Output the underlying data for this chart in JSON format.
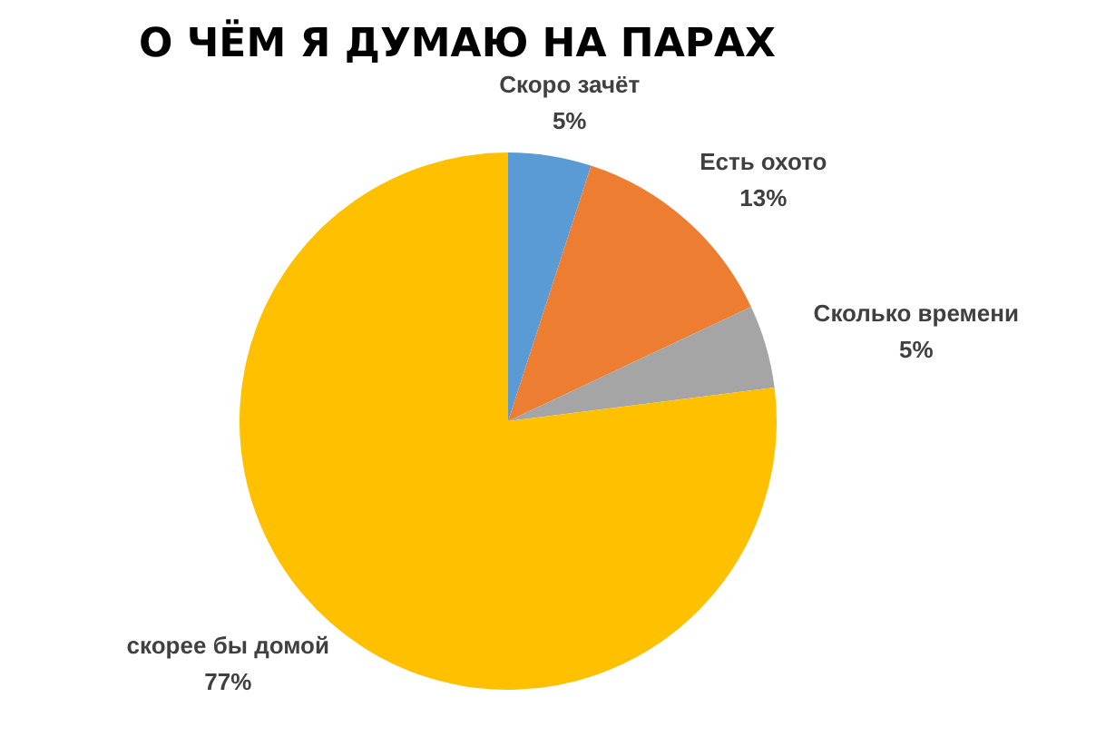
{
  "chart_data": {
    "type": "pie",
    "title": "О ЧЁМ Я ДУМАЮ НА ПАРАХ",
    "categories": [
      "Скоро зачёт",
      "Есть охото",
      "Сколько времени",
      "скорее бы домой"
    ],
    "values": [
      5,
      13,
      5,
      77
    ],
    "colors": [
      "#5b9bd5",
      "#ed7d31",
      "#a5a5a5",
      "#ffc000"
    ],
    "value_labels": [
      "5%",
      "13%",
      "5%",
      "77%"
    ]
  }
}
